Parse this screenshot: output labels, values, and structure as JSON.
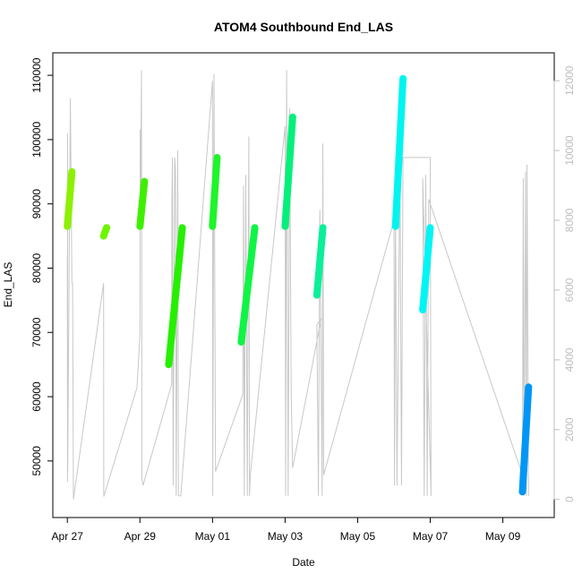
{
  "chart_data": {
    "type": "scatter",
    "title": "ATOM4 Southbound End_LAS",
    "xlabel": "Date",
    "ylabel": "End_LAS",
    "xlim": [
      "2025-04-26T14:24",
      "2025-05-10T10:00"
    ],
    "ylim": [
      41200,
      113500
    ],
    "y2lim": [
      -520,
      12800
    ],
    "x_ticks": [
      {
        "date": "2025-04-27",
        "label": "Apr 27"
      },
      {
        "date": "2025-04-29",
        "label": "Apr 29"
      },
      {
        "date": "2025-05-01",
        "label": "May 01"
      },
      {
        "date": "2025-05-03",
        "label": "May 03"
      },
      {
        "date": "2025-05-05",
        "label": "May 05"
      },
      {
        "date": "2025-05-07",
        "label": "May 07"
      },
      {
        "date": "2025-05-09",
        "label": "May 09"
      }
    ],
    "y_ticks": [
      50000,
      60000,
      70000,
      80000,
      90000,
      100000,
      110000
    ],
    "y2_ticks": [
      0,
      2000,
      4000,
      6000,
      8000,
      10000,
      12000
    ],
    "grid": false,
    "series": [
      {
        "color": "#8cf000",
        "x_start": "2025-04-27T00:00",
        "x_end": "2025-04-27T03:00",
        "y_start": 86500,
        "y_end": 95000
      },
      {
        "color": "#6ef500",
        "x_start": "2025-04-28T00:00",
        "x_end": "2025-04-28T02:00",
        "y_start": 85000,
        "y_end": 86300
      },
      {
        "color": "#3ef000",
        "x_start": "2025-04-29T00:00",
        "x_end": "2025-04-29T03:00",
        "y_start": 86500,
        "y_end": 93500
      },
      {
        "color": "#25f000",
        "x_start": "2025-04-29T19:00",
        "x_end": "2025-04-30T04:00",
        "y_start": 65000,
        "y_end": 86300
      },
      {
        "color": "#1ef52a",
        "x_start": "2025-05-01T00:00",
        "x_end": "2025-05-01T03:00",
        "y_start": 86500,
        "y_end": 97200
      },
      {
        "color": "#10f545",
        "x_start": "2025-05-01T19:00",
        "x_end": "2025-05-02T04:00",
        "y_start": 68500,
        "y_end": 86300
      },
      {
        "color": "#05f07a",
        "x_start": "2025-05-03T00:00",
        "x_end": "2025-05-03T05:00",
        "y_start": 86500,
        "y_end": 103500
      },
      {
        "color": "#0af09a",
        "x_start": "2025-05-03T21:00",
        "x_end": "2025-05-04T01:00",
        "y_start": 75800,
        "y_end": 86300
      },
      {
        "color": "#00f5f0",
        "x_start": "2025-05-06T01:00",
        "x_end": "2025-05-06T06:00",
        "y_start": 86500,
        "y_end": 109500
      },
      {
        "color": "#00f5f5",
        "x_start": "2025-05-06T19:00",
        "x_end": "2025-05-07T00:00",
        "y_start": 73500,
        "y_end": 86300
      },
      {
        "color": "#0096f5",
        "x_start": "2025-05-09T13:00",
        "x_end": "2025-05-09T17:00",
        "y_start": 45200,
        "y_end": 61500
      }
    ],
    "secondary_trace": {
      "color": "#c8c8c8",
      "description_axis": "right",
      "points": [
        [
          "2025-04-27T00:00",
          7000
        ],
        [
          "2025-04-27T00:05",
          500
        ],
        [
          "2025-04-27T00:10",
          10500
        ],
        [
          "2025-04-27T00:15",
          800
        ],
        [
          "2025-04-27T02:00",
          11500
        ],
        [
          "2025-04-27T03:00",
          6200
        ],
        [
          "2025-04-27T03:30",
          6200
        ],
        [
          "2025-04-27T04:00",
          0
        ],
        [
          "2025-04-28T00:00",
          6200
        ],
        [
          "2025-04-28T00:05",
          80
        ],
        [
          "2025-04-28T22:00",
          3200
        ],
        [
          "2025-04-29T00:00",
          4700
        ],
        [
          "2025-04-29T00:10",
          10600
        ],
        [
          "2025-04-29T00:20",
          8000
        ],
        [
          "2025-04-29T01:00",
          12300
        ],
        [
          "2025-04-29T01:20",
          600
        ],
        [
          "2025-04-29T02:00",
          400
        ],
        [
          "2025-04-29T21:00",
          3300
        ],
        [
          "2025-04-29T21:10",
          8600
        ],
        [
          "2025-04-29T21:30",
          9800
        ],
        [
          "2025-04-29T22:00",
          400
        ],
        [
          "2025-04-29T23:00",
          9800
        ],
        [
          "2025-04-29T23:30",
          9400
        ],
        [
          "2025-04-30T00:00",
          100
        ],
        [
          "2025-04-30T01:00",
          10000
        ],
        [
          "2025-04-30T01:30",
          100
        ],
        [
          "2025-04-30T03:00",
          100
        ],
        [
          "2025-05-01T00:00",
          12000
        ],
        [
          "2025-05-01T00:10",
          100
        ],
        [
          "2025-05-01T01:00",
          12200
        ],
        [
          "2025-05-01T02:00",
          800
        ],
        [
          "2025-05-01T20:00",
          3000
        ],
        [
          "2025-05-01T20:30",
          9000
        ],
        [
          "2025-05-01T21:00",
          100
        ],
        [
          "2025-05-01T22:00",
          9300
        ],
        [
          "2025-05-01T23:00",
          100
        ],
        [
          "2025-05-02T00:00",
          10400
        ],
        [
          "2025-05-02T00:30",
          100
        ],
        [
          "2025-05-02T01:00",
          700
        ],
        [
          "2025-05-03T00:00",
          10700
        ],
        [
          "2025-05-03T00:20",
          100
        ],
        [
          "2025-05-03T01:00",
          12300
        ],
        [
          "2025-05-03T02:00",
          100
        ],
        [
          "2025-05-03T03:00",
          11200
        ],
        [
          "2025-05-03T04:00",
          3100
        ],
        [
          "2025-05-03T05:00",
          900
        ],
        [
          "2025-05-04T00:00",
          5200
        ],
        [
          "2025-05-03T21:00",
          5000
        ],
        [
          "2025-05-03T22:00",
          100
        ],
        [
          "2025-05-03T23:00",
          8300
        ],
        [
          "2025-05-04T00:30",
          100
        ],
        [
          "2025-05-04T01:00",
          10200
        ],
        [
          "2025-05-04T01:30",
          700
        ],
        [
          "2025-05-06T00:00",
          8000
        ],
        [
          "2025-05-06T00:20",
          400
        ],
        [
          "2025-05-06T01:00",
          8200
        ],
        [
          "2025-05-06T02:00",
          400
        ],
        [
          "2025-05-06T04:00",
          9800
        ],
        [
          "2025-05-06T05:00",
          400
        ],
        [
          "2025-05-06T06:00",
          9800
        ],
        [
          "2025-05-06T07:00",
          9800
        ],
        [
          "2025-05-07T00:00",
          9800
        ],
        [
          "2025-05-07T00:30",
          100
        ],
        [
          "2025-05-06T19:00",
          9200
        ],
        [
          "2025-05-06T20:00",
          100
        ],
        [
          "2025-05-06T21:00",
          9300
        ],
        [
          "2025-05-06T22:00",
          100
        ],
        [
          "2025-05-06T23:00",
          8600
        ],
        [
          "2025-05-09T13:00",
          700
        ],
        [
          "2025-05-09T13:30",
          9200
        ],
        [
          "2025-05-09T14:00",
          100
        ],
        [
          "2025-05-09T15:00",
          9400
        ],
        [
          "2025-05-09T15:30",
          100
        ],
        [
          "2025-05-09T16:00",
          9600
        ],
        [
          "2025-05-09T17:00",
          100
        ]
      ]
    }
  }
}
